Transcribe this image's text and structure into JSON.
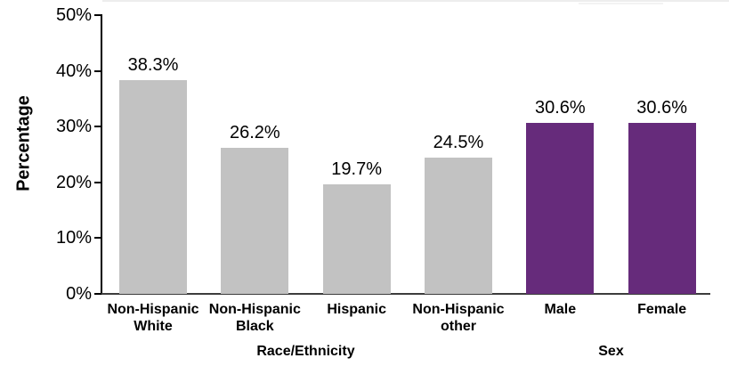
{
  "chart_data": {
    "type": "bar",
    "title": "",
    "ylabel": "Percentage",
    "xlabel_groups": [
      "Race/Ethnicity",
      "Sex"
    ],
    "ylim": [
      0,
      50
    ],
    "grid": false,
    "legend": "none",
    "yticks": [
      {
        "value": 0,
        "label": "0%"
      },
      {
        "value": 10,
        "label": "10%"
      },
      {
        "value": 20,
        "label": "20%"
      },
      {
        "value": 30,
        "label": "30%"
      },
      {
        "value": 40,
        "label": "40%"
      },
      {
        "value": 50,
        "label": "50%"
      }
    ],
    "bars": [
      {
        "category": "Non-Hispanic White",
        "category_lines": [
          "Non-Hispanic",
          "White"
        ],
        "value": 38.3,
        "value_label": "38.3%",
        "group": "Race/Ethnicity",
        "color": "#c2c2c2"
      },
      {
        "category": "Non-Hispanic Black",
        "category_lines": [
          "Non-Hispanic",
          "Black"
        ],
        "value": 26.2,
        "value_label": "26.2%",
        "group": "Race/Ethnicity",
        "color": "#c2c2c2"
      },
      {
        "category": "Hispanic",
        "category_lines": [
          "Hispanic"
        ],
        "value": 19.7,
        "value_label": "19.7%",
        "group": "Race/Ethnicity",
        "color": "#c2c2c2"
      },
      {
        "category": "Non-Hispanic other",
        "category_lines": [
          "Non-Hispanic",
          "other"
        ],
        "value": 24.5,
        "value_label": "24.5%",
        "group": "Race/Ethnicity",
        "color": "#c2c2c2"
      },
      {
        "category": "Male",
        "category_lines": [
          "Male"
        ],
        "value": 30.6,
        "value_label": "30.6%",
        "group": "Sex",
        "color": "#662b7b"
      },
      {
        "category": "Female",
        "category_lines": [
          "Female"
        ],
        "value": 30.6,
        "value_label": "30.6%",
        "group": "Sex",
        "color": "#662b7b"
      }
    ],
    "colors": {
      "race_ethnicity_bar": "#c2c2c2",
      "sex_bar": "#662b7b",
      "axis_line": "#000000",
      "baseline": "#3d3d3d",
      "text": "#000000"
    }
  }
}
